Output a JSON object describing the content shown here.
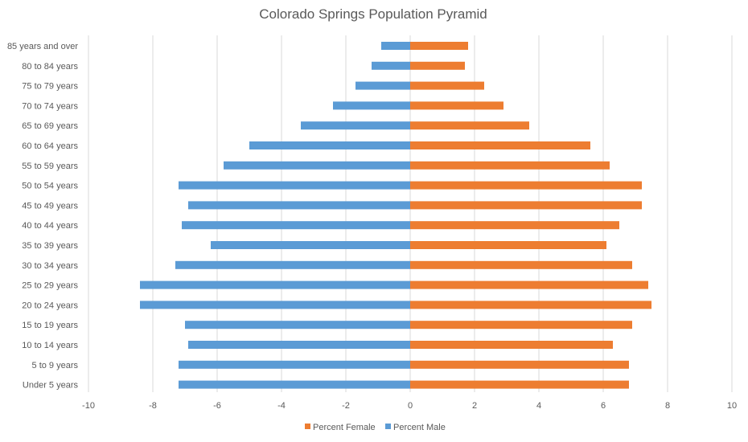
{
  "chart_data": {
    "type": "bar",
    "orientation": "horizontal",
    "title": "Colorado Springs Population Pyramid",
    "xlabel": "",
    "ylabel": "",
    "xlim": [
      -10,
      10
    ],
    "x_ticks": [
      -10,
      -8,
      -6,
      -4,
      -2,
      0,
      2,
      4,
      6,
      8,
      10
    ],
    "grid": true,
    "legend_position": "bottom",
    "categories": [
      "85 years and over",
      "80 to 84 years",
      "75 to 79 years",
      "70 to 74 years",
      "65 to 69 years",
      "60 to 64 years",
      "55 to 59 years",
      "50 to 54 years",
      "45 to 49 years",
      "40 to 44 years",
      "35 to 39 years",
      "30 to 34 years",
      "25 to 29 years",
      "20 to 24 years",
      "15 to 19 years",
      "10 to 14 years",
      "5 to 9 years",
      "Under 5 years"
    ],
    "series": [
      {
        "name": "Percent Female",
        "color": "#ed7d31",
        "values": [
          1.8,
          1.7,
          2.3,
          2.9,
          3.7,
          5.6,
          6.2,
          7.2,
          7.2,
          6.5,
          6.1,
          6.9,
          7.4,
          7.5,
          6.9,
          6.3,
          6.8,
          6.8
        ]
      },
      {
        "name": "Percent Male",
        "color": "#5b9bd5",
        "values": [
          -0.9,
          -1.2,
          -1.7,
          -2.4,
          -3.4,
          -5.0,
          -5.8,
          -7.2,
          -6.9,
          -7.1,
          -6.2,
          -7.3,
          -8.4,
          -8.4,
          -7.0,
          -6.9,
          -7.2,
          -7.2
        ]
      }
    ]
  }
}
